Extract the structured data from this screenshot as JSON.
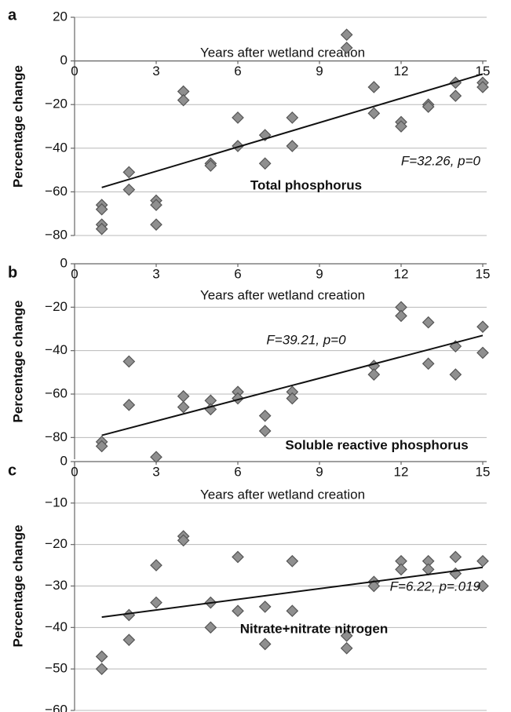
{
  "chart_data": [
    {
      "panel": "a",
      "type": "scatter",
      "color": "#8f8f8f",
      "grid": true,
      "x_label": "Years after wetland creation",
      "y_label": "Percentage change",
      "series_label": "Total phosphorus",
      "annotation": "F=32.26, p=0",
      "x": [
        1,
        1,
        1,
        1,
        2,
        2,
        3,
        3,
        3,
        4,
        4,
        5,
        5,
        6,
        6,
        7,
        7,
        8,
        8,
        10,
        10,
        11,
        11,
        12,
        12,
        13,
        13,
        14,
        14,
        15,
        15
      ],
      "y": [
        -66,
        -68,
        -75,
        -77,
        -51,
        -59,
        -64,
        -66,
        -75,
        -14,
        -18,
        -47,
        -48,
        -26,
        -39,
        -34,
        -47,
        -26,
        -39,
        12,
        6,
        -12,
        -24,
        -28,
        -30,
        -20,
        -21,
        -10,
        -16,
        -10,
        -12
      ],
      "trendline": {
        "x": [
          1,
          15
        ],
        "y": [
          -58,
          -6
        ]
      },
      "xlim": [
        0,
        15
      ],
      "xticks": [
        0,
        3,
        6,
        9,
        12,
        15
      ],
      "ylim": [
        -80,
        20
      ],
      "yticks": [
        20,
        0,
        {
          "value": -20,
          "label": "−20"
        },
        {
          "value": -40,
          "label": "−40"
        },
        {
          "value": -60,
          "label": "−60"
        },
        {
          "value": -80,
          "label": "−80"
        }
      ]
    },
    {
      "panel": "b",
      "type": "scatter",
      "color": "#8f8f8f",
      "grid": true,
      "x_label": "Years after wetland creation",
      "y_label": "Percentage change",
      "series_label": "Soluble reactive phosphorus",
      "annotation": "F=39.21, p=0",
      "x": [
        1,
        1,
        2,
        2,
        3,
        4,
        4,
        5,
        5,
        6,
        6,
        7,
        7,
        8,
        8,
        11,
        11,
        12,
        12,
        13,
        13,
        14,
        14,
        15,
        15
      ],
      "y": [
        -82,
        -84,
        -45,
        -65,
        -89,
        -61,
        -66,
        -63,
        -67,
        -59,
        -62,
        -70,
        -77,
        -59,
        -62,
        -47,
        -51,
        -20,
        -24,
        -27,
        -46,
        -38,
        -51,
        -29,
        -41
      ],
      "trendline": {
        "x": [
          1,
          15
        ],
        "y": [
          -79,
          -33
        ]
      },
      "xlim": [
        0,
        15
      ],
      "xticks": [
        0,
        3,
        6,
        9,
        12,
        15
      ],
      "ylim": [
        -90,
        0
      ],
      "yticks": [
        0,
        {
          "value": -20,
          "label": "−20"
        },
        {
          "value": -40,
          "label": "−40"
        },
        {
          "value": -60,
          "label": "−60"
        },
        {
          "value": -80,
          "label": "−80"
        }
      ]
    },
    {
      "panel": "c",
      "type": "scatter",
      "color": "#8f8f8f",
      "grid": true,
      "x_label": "Years after wetland creation",
      "y_label": "Percentage change",
      "series_label": "Nitrate+nitrate nitrogen",
      "annotation": "F=6.22, p=.019",
      "x": [
        1,
        1,
        2,
        2,
        3,
        3,
        4,
        4,
        5,
        5,
        6,
        6,
        7,
        7,
        8,
        8,
        10,
        10,
        11,
        11,
        12,
        12,
        13,
        13,
        14,
        14,
        15,
        15
      ],
      "y": [
        -47,
        -50,
        -37,
        -43,
        -25,
        -34,
        -18,
        -19,
        -34,
        -40,
        -23,
        -36,
        -35,
        -44,
        -24,
        -36,
        -42,
        -45,
        -29,
        -30,
        -24,
        -26,
        -24,
        -26,
        -23,
        -27,
        -24,
        -30
      ],
      "trendline": {
        "x": [
          1,
          15
        ],
        "y": [
          -37.5,
          -25.5
        ]
      },
      "xlim": [
        0,
        15
      ],
      "xticks": [
        0,
        3,
        6,
        9,
        12,
        15
      ],
      "ylim": [
        -60,
        0
      ],
      "yticks": [
        0,
        {
          "value": -10,
          "label": "−10"
        },
        {
          "value": -20,
          "label": "−20"
        },
        {
          "value": -30,
          "label": "−30"
        },
        {
          "value": -40,
          "label": "−40"
        },
        {
          "value": -50,
          "label": "−50"
        },
        {
          "value": -60,
          "label": "−60"
        }
      ]
    }
  ]
}
